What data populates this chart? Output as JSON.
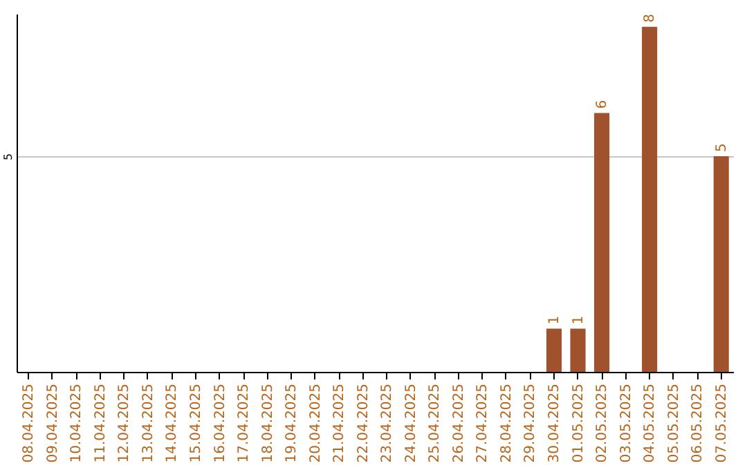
{
  "chart_data": {
    "type": "bar",
    "categories": [
      "08.04.2025",
      "09.04.2025",
      "10.04.2025",
      "11.04.2025",
      "12.04.2025",
      "13.04.2025",
      "14.04.2025",
      "15.04.2025",
      "16.04.2025",
      "17.04.2025",
      "18.04.2025",
      "19.04.2025",
      "20.04.2025",
      "21.04.2025",
      "22.04.2025",
      "23.04.2025",
      "24.04.2025",
      "25.04.2025",
      "26.04.2025",
      "27.04.2025",
      "28.04.2025",
      "29.04.2025",
      "30.04.2025",
      "01.05.2025",
      "02.05.2025",
      "03.05.2025",
      "04.05.2025",
      "05.05.2025",
      "06.05.2025",
      "07.05.2025"
    ],
    "values": [
      null,
      null,
      null,
      null,
      null,
      null,
      null,
      null,
      null,
      null,
      null,
      null,
      null,
      null,
      null,
      null,
      null,
      null,
      null,
      null,
      null,
      null,
      1,
      1,
      6,
      null,
      8,
      null,
      null,
      5
    ],
    "data_labels": true,
    "ylim": [
      0,
      8.3
    ],
    "color": "#a0522d",
    "yticks": [
      5
    ],
    "grid": "y"
  }
}
